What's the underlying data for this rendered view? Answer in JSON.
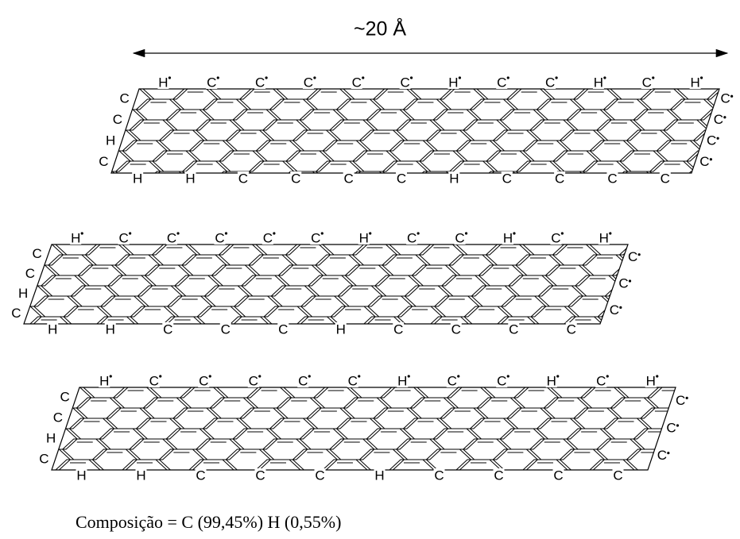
{
  "dimension": "~20 Å",
  "caption": "Composição = C (99,45%) H (0,55%)",
  "sheets": [
    {
      "top": [
        "H",
        "C",
        "C",
        "C",
        "C",
        "C",
        "H",
        "C",
        "C",
        "H",
        "C",
        "H"
      ],
      "bottom": [
        "H",
        "H",
        "C",
        "C",
        "C",
        "C",
        "H",
        "C",
        "C",
        "C",
        "C"
      ],
      "left": [
        "C",
        "C",
        "H",
        "C"
      ],
      "right": [
        "C",
        "C",
        "C",
        "C"
      ]
    },
    {
      "top": [
        "H",
        "C",
        "C",
        "C",
        "C",
        "C",
        "H",
        "C",
        "C",
        "H",
        "C",
        "H"
      ],
      "bottom": [
        "H",
        "H",
        "C",
        "C",
        "C",
        "H",
        "C",
        "C",
        "C",
        "C"
      ],
      "left": [
        "C",
        "C",
        "H",
        "C"
      ],
      "right": [
        "C",
        "C",
        "C"
      ]
    },
    {
      "top": [
        "H",
        "C",
        "C",
        "C",
        "C",
        "C",
        "H",
        "C",
        "C",
        "H",
        "C",
        "H"
      ],
      "bottom": [
        "H",
        "H",
        "C",
        "C",
        "C",
        "H",
        "C",
        "C",
        "C",
        "C"
      ],
      "left": [
        "C",
        "C",
        "H",
        "C"
      ],
      "right": [
        "C",
        "C",
        "C"
      ]
    }
  ]
}
